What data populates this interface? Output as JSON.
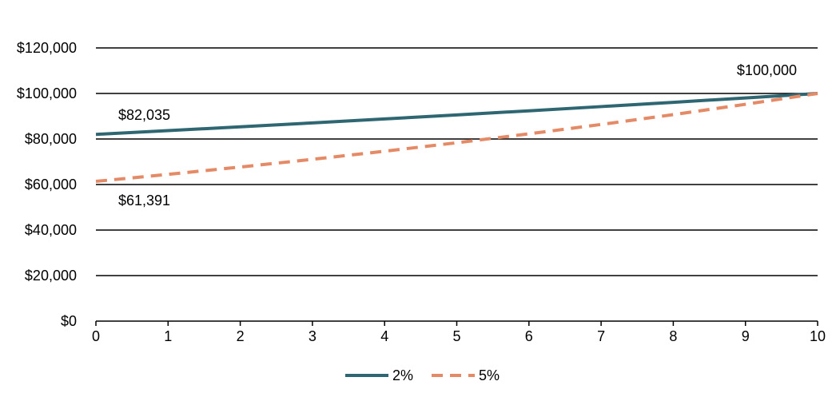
{
  "chart_data": {
    "type": "line",
    "title": "",
    "xlabel": "",
    "ylabel": "",
    "x": [
      0,
      1,
      2,
      3,
      4,
      5,
      6,
      7,
      8,
      9,
      10
    ],
    "xlim": [
      0,
      10
    ],
    "ylim": [
      0,
      120000
    ],
    "x_ticks": [
      "0",
      "1",
      "2",
      "3",
      "4",
      "5",
      "6",
      "7",
      "8",
      "9",
      "10"
    ],
    "y_ticks": [
      "$0",
      "$20,000",
      "$40,000",
      "$60,000",
      "$80,000",
      "$100,000",
      "$120,000"
    ],
    "y_tick_values": [
      0,
      20000,
      40000,
      60000,
      80000,
      100000,
      120000
    ],
    "grid": "horizontal",
    "legend_position": "bottom",
    "series": [
      {
        "name": "2%",
        "color": "#2e6672",
        "style": "solid",
        "values": [
          82035,
          83676,
          85349,
          87056,
          88797,
          90573,
          92385,
          94232,
          96117,
          98039,
          100000
        ]
      },
      {
        "name": "5%",
        "color": "#e48a66",
        "style": "dashed",
        "values": [
          61391,
          64461,
          67684,
          71068,
          74622,
          78353,
          82270,
          86384,
          90703,
          95238,
          100000
        ]
      }
    ],
    "annotations": [
      {
        "text": "$82,035",
        "x": 0,
        "y": 82035,
        "placement": "above-right"
      },
      {
        "text": "$61,391",
        "x": 0,
        "y": 61391,
        "placement": "below-right"
      },
      {
        "text": "$100,000",
        "x": 10,
        "y": 100000,
        "placement": "above-left"
      }
    ]
  }
}
